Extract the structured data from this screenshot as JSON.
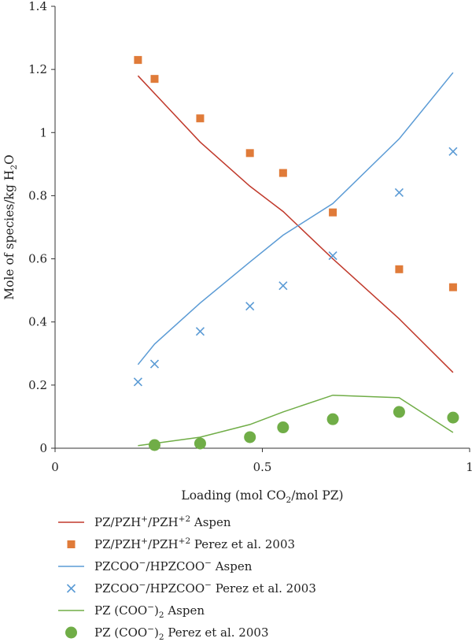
{
  "chart_data": {
    "type": "line",
    "xlabel": {
      "pre": "Loading (mol CO",
      "sub": "2",
      "post": "/mol PZ)"
    },
    "ylabel": {
      "pre": "Mole of species/kg H",
      "sub": "2",
      "post": "O"
    },
    "xlim": [
      0,
      1
    ],
    "ylim": [
      0,
      1.4
    ],
    "xticks": [
      "0",
      "0.5",
      "1"
    ],
    "xtick_values": [
      0,
      0.5,
      1
    ],
    "yticks": [
      "0",
      "0.2",
      "0.4",
      "0.6",
      "0.8",
      "1",
      "1.2",
      "1.4"
    ],
    "ytick_values": [
      0,
      0.2,
      0.4,
      0.6,
      0.8,
      1,
      1.2,
      1.4
    ],
    "grid": false,
    "legend_position": "below",
    "series": [
      {
        "name_parts": [
          [
            "PZ/PZH",
            ""
          ],
          [
            "+",
            "sup"
          ],
          [
            "/PZH",
            ""
          ],
          [
            "+2",
            "sup"
          ],
          [
            " Aspen",
            ""
          ]
        ],
        "kind": "line",
        "color": "#c0392b",
        "x": [
          0.2,
          0.35,
          0.47,
          0.55,
          0.67,
          0.83,
          0.96
        ],
        "y": [
          1.18,
          0.97,
          0.83,
          0.75,
          0.6,
          0.41,
          0.24
        ]
      },
      {
        "name_parts": [
          [
            "PZ/PZH",
            ""
          ],
          [
            "+",
            "sup"
          ],
          [
            "/PZH",
            ""
          ],
          [
            "+2",
            "sup"
          ],
          [
            " Perez et al. 2003",
            ""
          ]
        ],
        "kind": "square",
        "color": "#e07b39",
        "x": [
          0.2,
          0.24,
          0.35,
          0.47,
          0.55,
          0.67,
          0.83,
          0.96
        ],
        "y": [
          1.23,
          1.17,
          1.045,
          0.935,
          0.872,
          0.747,
          0.567,
          0.51
        ]
      },
      {
        "name_parts": [
          [
            "PZCOO",
            ""
          ],
          [
            "−",
            "sup"
          ],
          [
            "/HPZCOO",
            ""
          ],
          [
            "−",
            "sup"
          ],
          [
            " Aspen",
            ""
          ]
        ],
        "kind": "line",
        "color": "#5b9bd5",
        "x": [
          0.2,
          0.24,
          0.35,
          0.47,
          0.55,
          0.67,
          0.83,
          0.96
        ],
        "y": [
          0.265,
          0.33,
          0.46,
          0.59,
          0.675,
          0.775,
          0.98,
          1.19
        ]
      },
      {
        "name_parts": [
          [
            "PZCOO",
            ""
          ],
          [
            "−",
            "sup"
          ],
          [
            "/HPZCOO",
            ""
          ],
          [
            "−",
            "sup"
          ],
          [
            " Perez et al. 2003",
            ""
          ]
        ],
        "kind": "cross",
        "color": "#5b9bd5",
        "x": [
          0.2,
          0.24,
          0.35,
          0.47,
          0.55,
          0.67,
          0.83,
          0.96
        ],
        "y": [
          0.21,
          0.267,
          0.37,
          0.45,
          0.515,
          0.61,
          0.81,
          0.94
        ]
      },
      {
        "name_parts": [
          [
            "PZ (COO",
            ""
          ],
          [
            "−",
            "sup"
          ],
          [
            ")",
            ""
          ],
          [
            "2",
            "sub"
          ],
          [
            " Aspen",
            ""
          ]
        ],
        "kind": "line",
        "color": "#70ad47",
        "x": [
          0.2,
          0.35,
          0.47,
          0.55,
          0.67,
          0.83,
          0.96
        ],
        "y": [
          0.008,
          0.035,
          0.075,
          0.115,
          0.168,
          0.16,
          0.05
        ]
      },
      {
        "name_parts": [
          [
            "PZ (COO",
            ""
          ],
          [
            "−",
            "sup"
          ],
          [
            ")",
            ""
          ],
          [
            "2",
            "sub"
          ],
          [
            " Perez et al. 2003",
            ""
          ]
        ],
        "kind": "circle",
        "color": "#70ad47",
        "x": [
          0.24,
          0.35,
          0.47,
          0.55,
          0.67,
          0.83,
          0.96
        ],
        "y": [
          0.01,
          0.015,
          0.035,
          0.066,
          0.092,
          0.115,
          0.097
        ]
      }
    ]
  }
}
